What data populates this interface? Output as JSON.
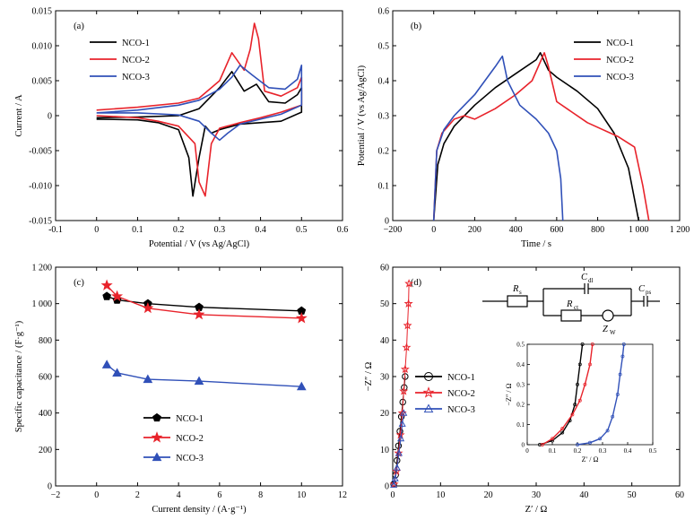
{
  "colors": {
    "NCO-1": "#000000",
    "NCO-2": "#e8232b",
    "NCO-3": "#3050b8"
  },
  "chart_data": [
    {
      "id": "a",
      "type": "line",
      "panel_label": "(a)",
      "xlabel": "Potential / V (vs Ag/AgCl)",
      "ylabel": "Current / A",
      "xlim": [
        -0.1,
        0.6
      ],
      "ylim": [
        -0.015,
        0.015
      ],
      "xticks": [
        "-0.1",
        "0",
        "0.1",
        "0.2",
        "0.3",
        "0.4",
        "0.5",
        "0.6"
      ],
      "xtick_values": [
        -0.1,
        0,
        0.1,
        0.2,
        0.3,
        0.4,
        0.5,
        0.6
      ],
      "yticks": [
        "-0.015",
        "-0.010",
        "-0.005",
        "0",
        "0.005",
        "0.010",
        "0.015"
      ],
      "ytick_values": [
        -0.015,
        -0.01,
        -0.005,
        0,
        0.005,
        0.01,
        0.015
      ],
      "legend": [
        "NCO-1",
        "NCO-2",
        "NCO-3"
      ],
      "legend_position": "upper-left",
      "series": [
        {
          "name": "NCO-1",
          "points": [
            [
              0,
              -0.0003
            ],
            [
              0.1,
              -0.0002
            ],
            [
              0.2,
              0.0
            ],
            [
              0.25,
              0.001
            ],
            [
              0.3,
              0.004
            ],
            [
              0.33,
              0.0063
            ],
            [
              0.36,
              0.0035
            ],
            [
              0.39,
              0.0045
            ],
            [
              0.42,
              0.002
            ],
            [
              0.46,
              0.0018
            ],
            [
              0.49,
              0.003
            ],
            [
              0.5,
              0.004
            ],
            [
              0.5,
              0.0005
            ],
            [
              0.45,
              -0.0008
            ],
            [
              0.4,
              -0.001
            ],
            [
              0.35,
              -0.0012
            ],
            [
              0.3,
              -0.002
            ],
            [
              0.28,
              -0.0025
            ],
            [
              0.265,
              -0.0015
            ],
            [
              0.25,
              -0.006
            ],
            [
              0.235,
              -0.0115
            ],
            [
              0.225,
              -0.006
            ],
            [
              0.2,
              -0.002
            ],
            [
              0.15,
              -0.001
            ],
            [
              0.1,
              -0.0006
            ],
            [
              0,
              -0.0005
            ]
          ]
        },
        {
          "name": "NCO-2",
          "points": [
            [
              0,
              0.0008
            ],
            [
              0.1,
              0.0012
            ],
            [
              0.2,
              0.0018
            ],
            [
              0.25,
              0.0025
            ],
            [
              0.3,
              0.005
            ],
            [
              0.33,
              0.009
            ],
            [
              0.36,
              0.0065
            ],
            [
              0.375,
              0.0095
            ],
            [
              0.385,
              0.0132
            ],
            [
              0.395,
              0.011
            ],
            [
              0.41,
              0.0035
            ],
            [
              0.45,
              0.0028
            ],
            [
              0.49,
              0.004
            ],
            [
              0.5,
              0.0055
            ],
            [
              0.5,
              0.0015
            ],
            [
              0.45,
              0.0005
            ],
            [
              0.4,
              -0.0003
            ],
            [
              0.35,
              -0.001
            ],
            [
              0.3,
              -0.0018
            ],
            [
              0.28,
              -0.004
            ],
            [
              0.265,
              -0.0115
            ],
            [
              0.25,
              -0.0095
            ],
            [
              0.24,
              -0.004
            ],
            [
              0.2,
              -0.0015
            ],
            [
              0.15,
              -0.0008
            ],
            [
              0.1,
              -0.0003
            ],
            [
              0,
              0.0
            ]
          ]
        },
        {
          "name": "NCO-3",
          "points": [
            [
              0,
              0.0004
            ],
            [
              0.1,
              0.0008
            ],
            [
              0.2,
              0.0015
            ],
            [
              0.25,
              0.0022
            ],
            [
              0.3,
              0.0038
            ],
            [
              0.33,
              0.0055
            ],
            [
              0.35,
              0.0072
            ],
            [
              0.38,
              0.0058
            ],
            [
              0.42,
              0.004
            ],
            [
              0.46,
              0.0038
            ],
            [
              0.49,
              0.0052
            ],
            [
              0.5,
              0.0072
            ],
            [
              0.5,
              0.0015
            ],
            [
              0.45,
              0.0002
            ],
            [
              0.4,
              -0.0005
            ],
            [
              0.35,
              -0.0012
            ],
            [
              0.32,
              -0.0025
            ],
            [
              0.3,
              -0.0035
            ],
            [
              0.28,
              -0.0025
            ],
            [
              0.25,
              -0.0008
            ],
            [
              0.2,
              0.0001
            ],
            [
              0.1,
              0.0004
            ],
            [
              0,
              0.0004
            ]
          ]
        }
      ]
    },
    {
      "id": "b",
      "type": "line",
      "panel_label": "(b)",
      "xlabel": "Time / s",
      "ylabel": "Potential / V (vs Ag/AgCl)",
      "xlim": [
        -200,
        1200
      ],
      "ylim": [
        0,
        0.6
      ],
      "xticks": [
        "−200",
        "0",
        "200",
        "400",
        "600",
        "800",
        "1 000",
        "1 200"
      ],
      "xtick_values": [
        -200,
        0,
        200,
        400,
        600,
        800,
        1000,
        1200
      ],
      "yticks": [
        "0",
        "0.1",
        "0.2",
        "0.3",
        "0.4",
        "0.5",
        "0.6"
      ],
      "ytick_values": [
        0,
        0.1,
        0.2,
        0.3,
        0.4,
        0.5,
        0.6
      ],
      "legend": [
        "NCO-1",
        "NCO-2",
        "NCO-3"
      ],
      "legend_position": "upper-right",
      "series": [
        {
          "name": "NCO-1",
          "points": [
            [
              0,
              0
            ],
            [
              20,
              0.16
            ],
            [
              50,
              0.22
            ],
            [
              100,
              0.27
            ],
            [
              200,
              0.33
            ],
            [
              300,
              0.38
            ],
            [
              400,
              0.42
            ],
            [
              500,
              0.46
            ],
            [
              520,
              0.48
            ],
            [
              560,
              0.43
            ],
            [
              600,
              0.41
            ],
            [
              700,
              0.37
            ],
            [
              800,
              0.32
            ],
            [
              880,
              0.25
            ],
            [
              950,
              0.15
            ],
            [
              1000,
              0
            ]
          ]
        },
        {
          "name": "NCO-2",
          "points": [
            [
              0,
              0
            ],
            [
              15,
              0.2
            ],
            [
              40,
              0.25
            ],
            [
              100,
              0.29
            ],
            [
              150,
              0.3
            ],
            [
              200,
              0.29
            ],
            [
              300,
              0.32
            ],
            [
              400,
              0.36
            ],
            [
              480,
              0.4
            ],
            [
              540,
              0.48
            ],
            [
              560,
              0.44
            ],
            [
              600,
              0.34
            ],
            [
              650,
              0.32
            ],
            [
              750,
              0.28
            ],
            [
              900,
              0.24
            ],
            [
              980,
              0.21
            ],
            [
              1020,
              0.1
            ],
            [
              1050,
              0
            ]
          ]
        },
        {
          "name": "NCO-3",
          "points": [
            [
              0,
              0
            ],
            [
              15,
              0.2
            ],
            [
              50,
              0.26
            ],
            [
              100,
              0.3
            ],
            [
              200,
              0.36
            ],
            [
              300,
              0.44
            ],
            [
              335,
              0.47
            ],
            [
              360,
              0.4
            ],
            [
              420,
              0.33
            ],
            [
              500,
              0.29
            ],
            [
              560,
              0.25
            ],
            [
              600,
              0.2
            ],
            [
              620,
              0.12
            ],
            [
              630,
              0
            ]
          ]
        }
      ]
    },
    {
      "id": "c",
      "type": "line",
      "panel_label": "(c)",
      "xlabel": "Current density / (A·g⁻¹)",
      "ylabel": "Specific capacitance / (F·g⁻¹)",
      "xlim": [
        -2,
        12
      ],
      "ylim": [
        0,
        1200
      ],
      "xticks": [
        "−2",
        "0",
        "2",
        "4",
        "6",
        "8",
        "10",
        "12"
      ],
      "xtick_values": [
        -2,
        0,
        2,
        4,
        6,
        8,
        10,
        12
      ],
      "yticks": [
        "0",
        "200",
        "400",
        "600",
        "800",
        "1 000",
        "1 200"
      ],
      "ytick_values": [
        0,
        200,
        400,
        600,
        800,
        1000,
        1200
      ],
      "legend": [
        "NCO-1",
        "NCO-2",
        "NCO-3"
      ],
      "legend_position": "lower-left",
      "categories_x": [
        0.5,
        1,
        2.5,
        5,
        10
      ],
      "series": [
        {
          "name": "NCO-1",
          "marker": "pentagon",
          "values": [
            1040,
            1020,
            1000,
            980,
            960
          ]
        },
        {
          "name": "NCO-2",
          "marker": "star",
          "values": [
            1100,
            1040,
            975,
            940,
            920
          ]
        },
        {
          "name": "NCO-3",
          "marker": "triangle",
          "values": [
            665,
            620,
            585,
            575,
            545
          ]
        }
      ]
    },
    {
      "id": "d",
      "type": "scatter",
      "panel_label": "(d)",
      "xlabel": "Z′ / Ω",
      "ylabel": "−Z″ / Ω",
      "xlim": [
        0,
        60
      ],
      "ylim": [
        0,
        60
      ],
      "xticks": [
        "0",
        "10",
        "20",
        "30",
        "40",
        "50",
        "60"
      ],
      "xtick_values": [
        0,
        10,
        20,
        30,
        40,
        50,
        60
      ],
      "yticks": [
        "0",
        "10",
        "20",
        "30",
        "40",
        "50",
        "60"
      ],
      "ytick_values": [
        0,
        10,
        20,
        30,
        40,
        50,
        60
      ],
      "legend": [
        "NCO-1",
        "NCO-2",
        "NCO-3"
      ],
      "legend_position": "center-left",
      "series": [
        {
          "name": "NCO-1",
          "marker": "circle",
          "points": [
            [
              0.2,
              0.5
            ],
            [
              0.6,
              3
            ],
            [
              0.9,
              7
            ],
            [
              1.2,
              11
            ],
            [
              1.5,
              15
            ],
            [
              1.8,
              19
            ],
            [
              2.1,
              23
            ],
            [
              2.4,
              27
            ],
            [
              2.6,
              30
            ]
          ]
        },
        {
          "name": "NCO-2",
          "marker": "star",
          "points": [
            [
              0.3,
              0.5
            ],
            [
              0.8,
              4
            ],
            [
              1.2,
              9
            ],
            [
              1.6,
              14
            ],
            [
              2.0,
              20
            ],
            [
              2.3,
              26
            ],
            [
              2.6,
              32
            ],
            [
              2.9,
              38
            ],
            [
              3.1,
              44
            ],
            [
              3.3,
              50
            ],
            [
              3.4,
              55.5
            ]
          ]
        },
        {
          "name": "NCO-3",
          "marker": "triangle",
          "points": [
            [
              0.2,
              0.3
            ],
            [
              0.5,
              2
            ],
            [
              0.9,
              5
            ],
            [
              1.3,
              9
            ],
            [
              1.7,
              13
            ],
            [
              2.0,
              17
            ],
            [
              2.3,
              20
            ]
          ]
        }
      ],
      "circuit_labels": [
        "R",
        "s",
        "C",
        "dl",
        "R",
        "ct",
        "C",
        "ps",
        "Z",
        "W"
      ],
      "inset": {
        "xlabel": "Z′ / Ω",
        "ylabel": "−Z″ / Ω",
        "xlim": [
          0,
          0.5
        ],
        "ylim": [
          0,
          0.5
        ],
        "xticks": [
          "0",
          "0.1",
          "0.2",
          "0.3",
          "0.4",
          "0.5"
        ],
        "xtick_values": [
          0,
          0.1,
          0.2,
          0.3,
          0.4,
          0.5
        ],
        "yticks": [
          "0",
          "0.1",
          "0.2",
          "0.3",
          "0.4",
          "0.5"
        ],
        "ytick_values": [
          0,
          0.1,
          0.2,
          0.3,
          0.4,
          0.5
        ],
        "series": [
          {
            "name": "NCO-1",
            "points": [
              [
                0.05,
                0.0
              ],
              [
                0.1,
                0.02
              ],
              [
                0.14,
                0.06
              ],
              [
                0.17,
                0.12
              ],
              [
                0.19,
                0.2
              ],
              [
                0.2,
                0.3
              ],
              [
                0.21,
                0.4
              ],
              [
                0.22,
                0.5
              ]
            ]
          },
          {
            "name": "NCO-2",
            "points": [
              [
                0.06,
                0.0
              ],
              [
                0.1,
                0.03
              ],
              [
                0.14,
                0.08
              ],
              [
                0.18,
                0.15
              ],
              [
                0.21,
                0.22
              ],
              [
                0.23,
                0.3
              ],
              [
                0.25,
                0.4
              ],
              [
                0.26,
                0.5
              ]
            ]
          },
          {
            "name": "NCO-3",
            "points": [
              [
                0.2,
                0.0
              ],
              [
                0.25,
                0.01
              ],
              [
                0.29,
                0.03
              ],
              [
                0.32,
                0.07
              ],
              [
                0.34,
                0.14
              ],
              [
                0.36,
                0.25
              ],
              [
                0.37,
                0.35
              ],
              [
                0.38,
                0.44
              ],
              [
                0.385,
                0.5
              ]
            ]
          }
        ]
      }
    }
  ]
}
